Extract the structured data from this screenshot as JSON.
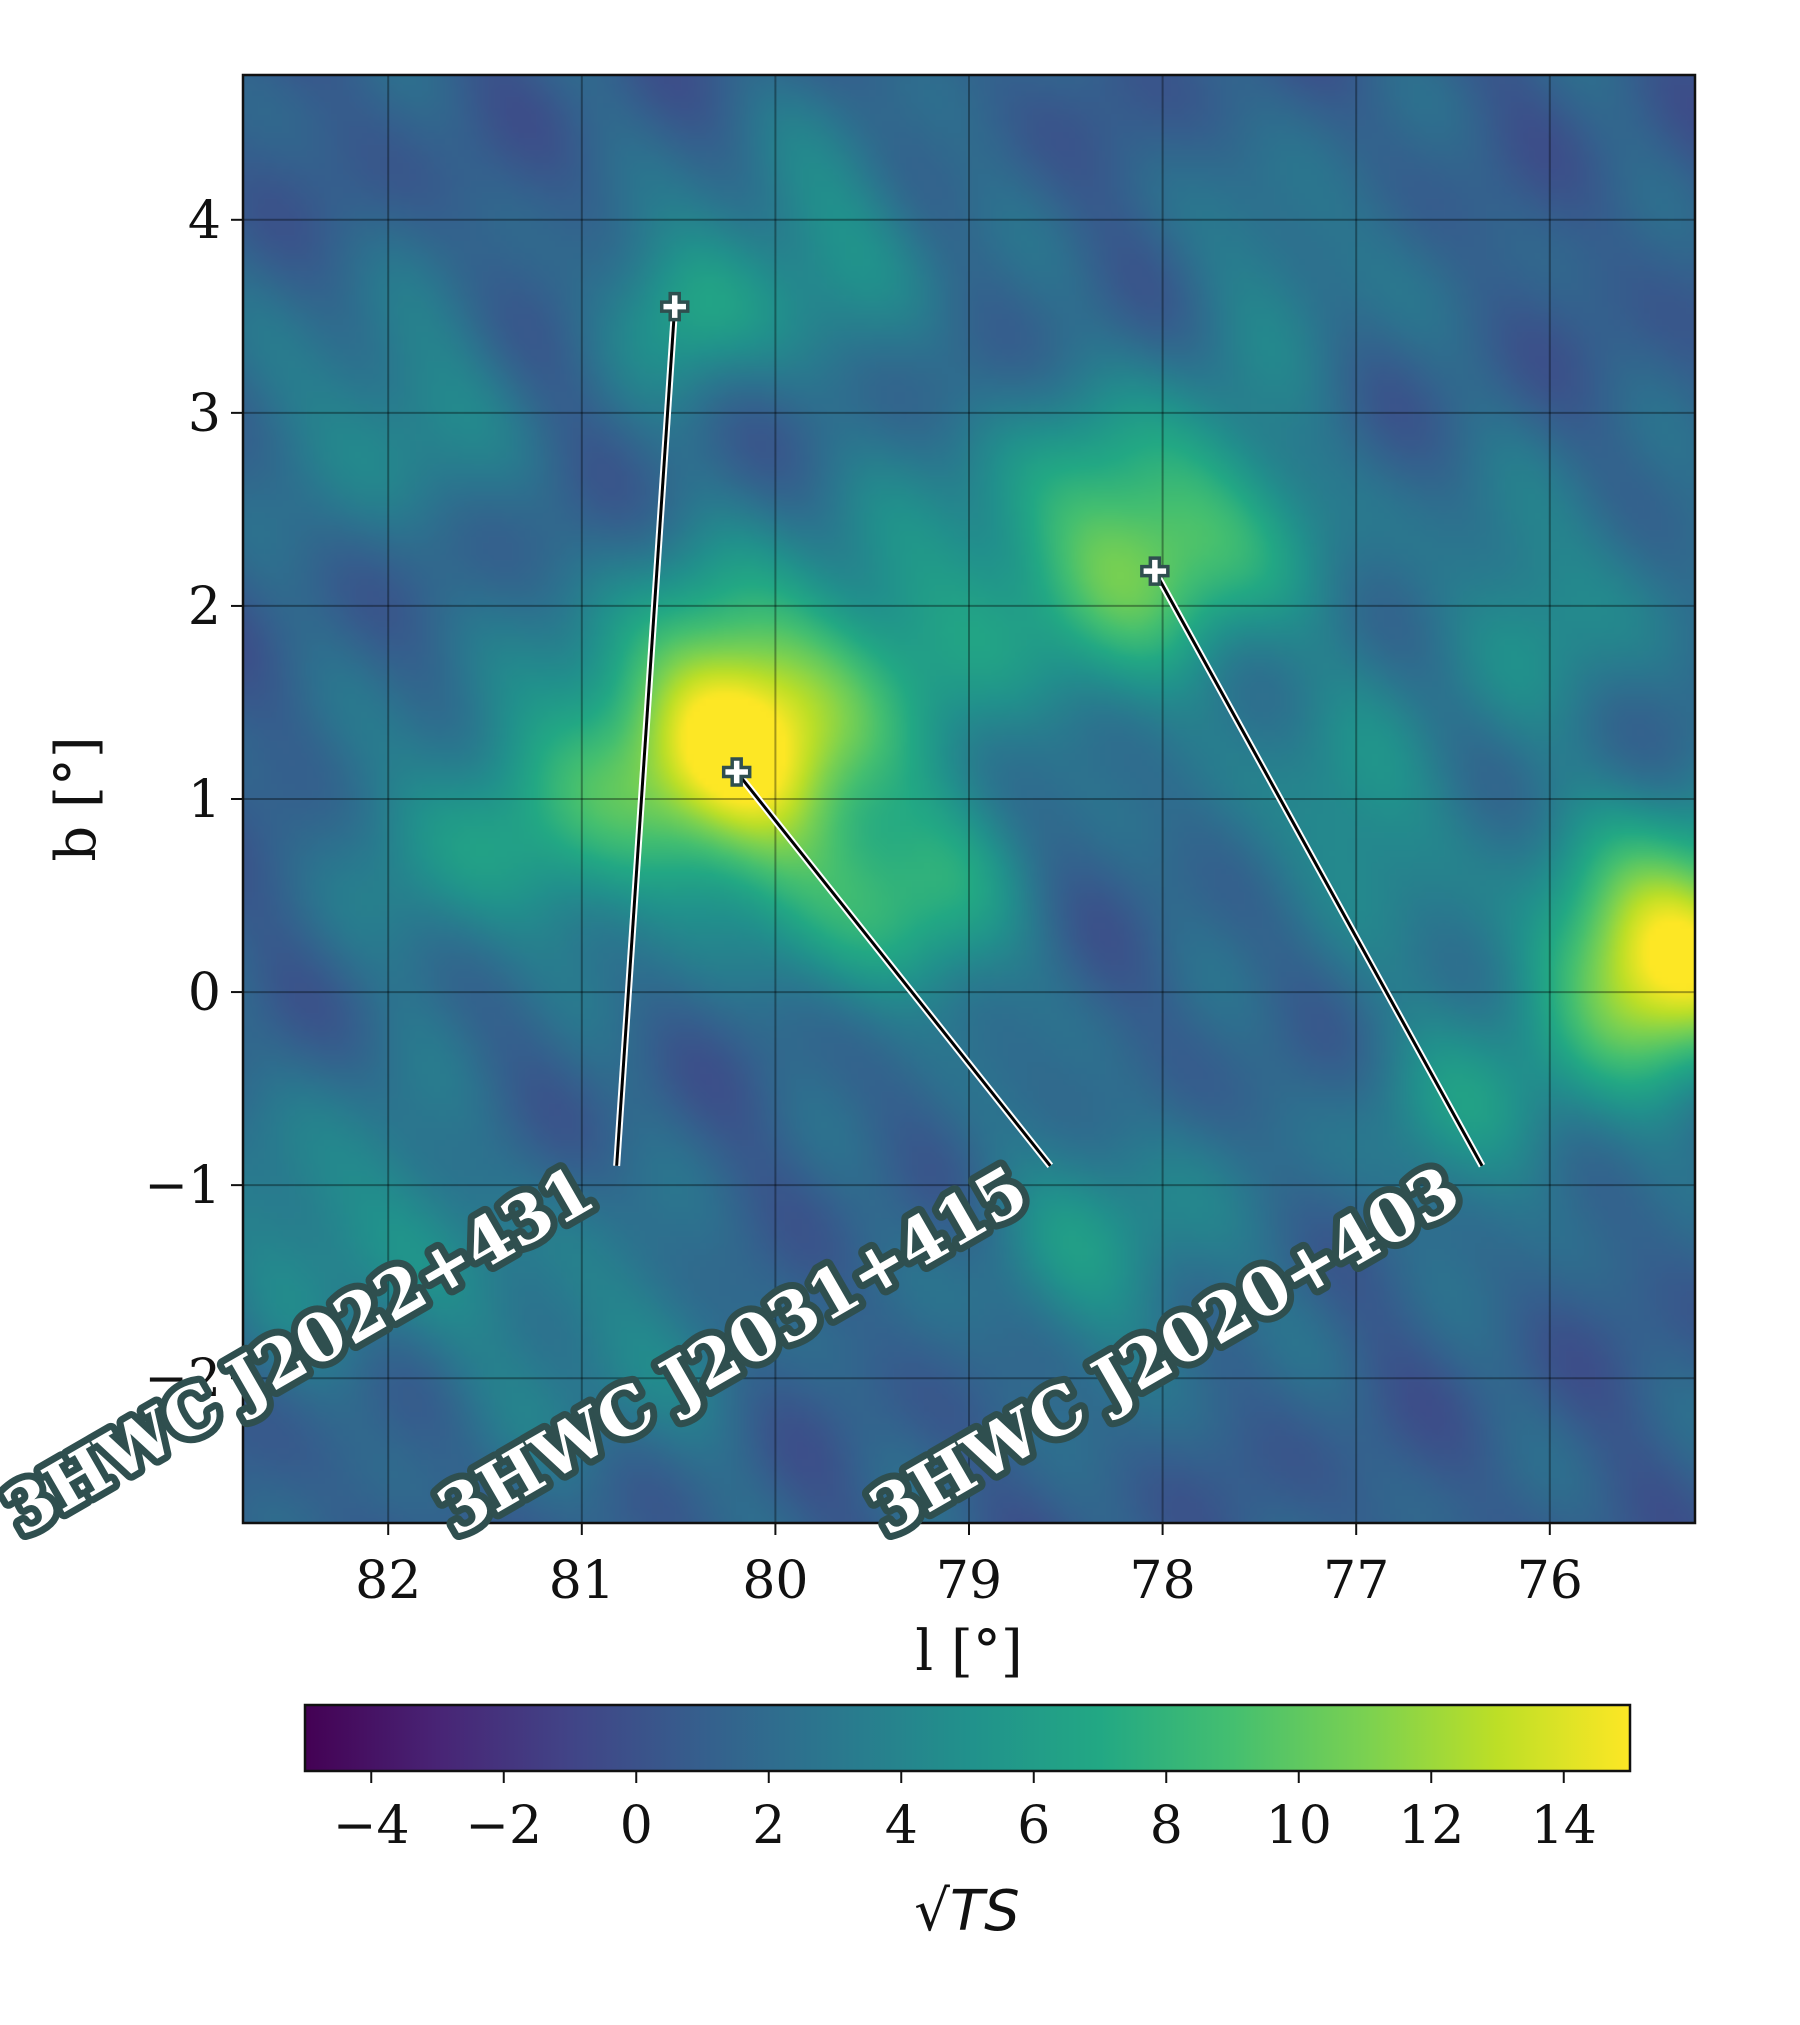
{
  "chart_data": {
    "type": "heatmap",
    "title": "",
    "xlabel": "l [°]",
    "ylabel": "b [°]",
    "x_axis_reversed": true,
    "xlim": [
      82.75,
      75.25
    ],
    "ylim": [
      -2.75,
      4.75
    ],
    "xticks": [
      82,
      81,
      80,
      79,
      78,
      77,
      76
    ],
    "yticks": [
      -2,
      -1,
      0,
      1,
      2,
      3,
      4
    ],
    "grid": true,
    "colormap": "viridis",
    "colorbar": {
      "label": "√TS",
      "range": [
        -5,
        15
      ],
      "ticks": [
        -4,
        -2,
        0,
        2,
        4,
        6,
        8,
        10,
        12,
        14
      ],
      "placement": "bottom"
    },
    "blobs": [
      {
        "l": 80.2,
        "b": 1.3,
        "value": 15,
        "sigma": 0.55
      },
      {
        "l": 75.35,
        "b": 0.2,
        "value": 15,
        "sigma": 0.45
      },
      {
        "l": 77.95,
        "b": 2.35,
        "value": 8,
        "sigma": 0.5
      },
      {
        "l": 80.45,
        "b": 3.55,
        "value": 5,
        "sigma": 0.3
      },
      {
        "l": 79.3,
        "b": 0.4,
        "value": 6,
        "sigma": 0.4
      },
      {
        "l": 81.5,
        "b": 0.8,
        "value": 4.5,
        "sigma": 0.5
      },
      {
        "l": 78.8,
        "b": 2.1,
        "value": 4,
        "sigma": 0.6
      },
      {
        "l": 77.0,
        "b": 0.9,
        "value": 4,
        "sigma": 0.45
      },
      {
        "l": 78.3,
        "b": -1.3,
        "value": 4,
        "sigma": 0.5
      },
      {
        "l": 82.2,
        "b": -1.2,
        "value": 4,
        "sigma": 0.5
      },
      {
        "l": 79.7,
        "b": 3.9,
        "value": 3.5,
        "sigma": 0.45
      },
      {
        "l": 76.0,
        "b": 2.0,
        "value": 3.5,
        "sigma": 0.5
      },
      {
        "l": 80.9,
        "b": -1.8,
        "value": 3,
        "sigma": 0.5
      },
      {
        "l": 76.4,
        "b": -0.6,
        "value": 4,
        "sigma": 0.45
      },
      {
        "l": 82.0,
        "b": 3.0,
        "value": 3.5,
        "sigma": 0.45
      },
      {
        "l": 77.3,
        "b": 3.8,
        "value": 2.5,
        "sigma": 0.4
      }
    ],
    "background_value": 1.0,
    "sources": [
      {
        "name": "3HWC J2022+431",
        "l": 80.52,
        "b": 3.55,
        "label_anchor_l": 80.82,
        "label_anchor_b": -0.9
      },
      {
        "name": "3HWC J2031+415",
        "l": 80.2,
        "b": 1.14,
        "label_anchor_l": 78.58,
        "label_anchor_b": -0.9
      },
      {
        "name": "3HWC J2020+403",
        "l": 78.04,
        "b": 2.18,
        "label_anchor_l": 76.35,
        "label_anchor_b": -0.9
      }
    ]
  }
}
